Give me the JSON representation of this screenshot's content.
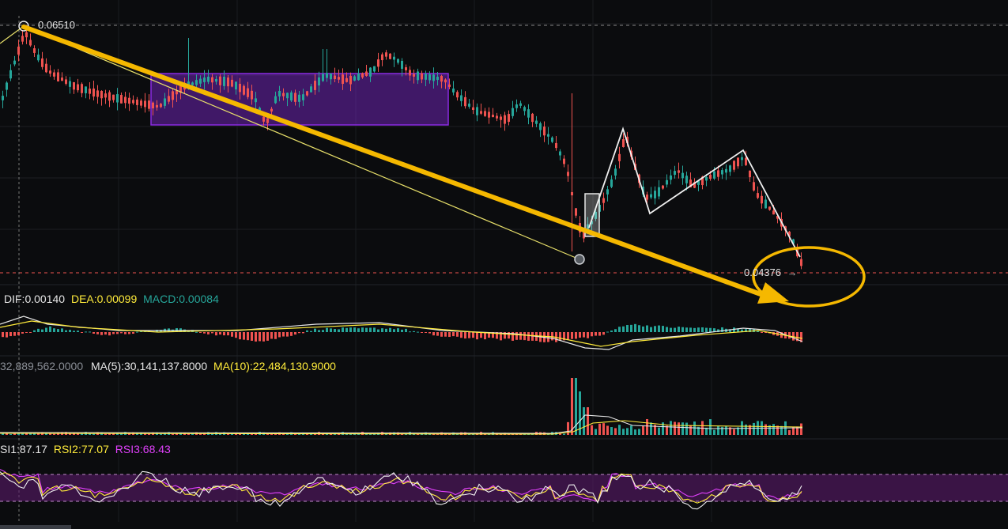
{
  "colors": {
    "background": "#0b0c0e",
    "up": "#26a69a",
    "down": "#ef5350",
    "gold": "#f5b800",
    "purple": "#8a2be2",
    "white": "#e6e6e6",
    "yellow": "#ffeb3b",
    "pink": "#e040fb",
    "rsi_band": "#5a1a6b"
  },
  "price": {
    "high_label": "0.06510",
    "last_label": "0.04376",
    "arrow_glyph": "→"
  },
  "macd": {
    "dif": "DIF:0.00140",
    "dea": "DEA:0.00099",
    "macd": "MACD:0.00084"
  },
  "volume": {
    "vol": "32,889,562.0000",
    "ma5": "MA(5):30,141,137.8000",
    "ma10": "MA(10):22,484,130.9000"
  },
  "rsi": {
    "rsi1": "SI1:87.17",
    "rsi2": "RSI2:77.07",
    "rsi3": "RSI3:68.43"
  },
  "chart_data": {
    "type": "candlestick",
    "price_range": [
      0.0425,
      0.0665
    ],
    "reference_prices": {
      "high": 0.0651,
      "last": 0.04376
    },
    "annotations": [
      "consolidation box",
      "down trend arrow",
      "circle on last price",
      "zigzag pattern",
      "highlight box"
    ],
    "grid": true
  }
}
